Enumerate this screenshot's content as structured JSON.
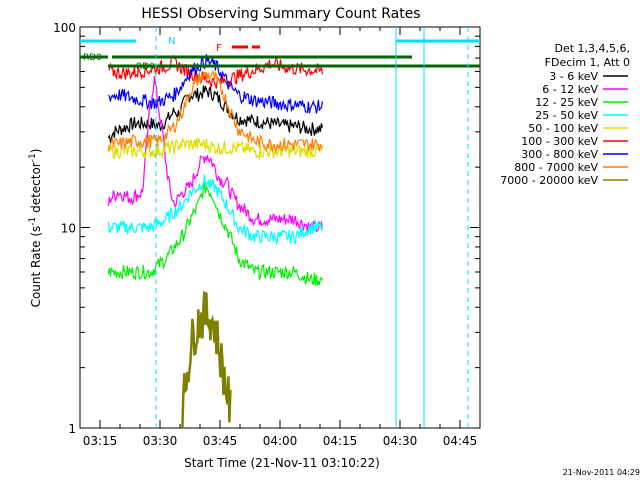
{
  "chart_data": {
    "type": "line",
    "title": "HESSI Observing Summary Count Rates",
    "xlabel": "Start Time (21-Nov-11 03:10:22)",
    "ylabel_main": "Count Rate (s",
    "ylabel_sup1": "-1",
    "ylabel_mid": " detector",
    "ylabel_sup2": "-1",
    "ylabel_end": ")",
    "y_scale": "log",
    "ylim": [
      1,
      100
    ],
    "xlim": [
      "03:10",
      "04:50"
    ],
    "x_ticks": [
      "03:15",
      "03:30",
      "03:45",
      "04:00",
      "04:15",
      "04:30",
      "04:45"
    ],
    "y_ticks": [
      "1",
      "10",
      "100"
    ],
    "footer": "21-Nov-2011 04:29",
    "legend_header": [
      "Det 1,3,4,5,6,",
      "FDecim 1, Att 0"
    ],
    "legend_placement": "right",
    "series": [
      {
        "name": "3 - 6 keV",
        "color": "#000000",
        "values": [
          [
            3.5,
            28
          ],
          [
            5,
            30
          ],
          [
            10,
            33
          ],
          [
            14,
            33
          ],
          [
            16,
            32
          ],
          [
            18,
            34
          ],
          [
            20,
            38
          ],
          [
            21,
            37
          ],
          [
            22,
            40
          ],
          [
            23,
            44
          ],
          [
            24,
            46
          ],
          [
            26,
            46
          ],
          [
            28,
            48
          ],
          [
            30,
            46
          ],
          [
            32,
            42
          ],
          [
            34,
            38
          ],
          [
            36,
            35
          ],
          [
            40,
            34
          ],
          [
            44,
            33
          ],
          [
            48,
            32
          ],
          [
            50,
            32
          ],
          [
            54,
            31
          ],
          [
            57,
            31
          ]
        ]
      },
      {
        "name": "6 - 12 keV",
        "color": "#ff00ff",
        "values": [
          [
            3.5,
            13
          ],
          [
            4,
            14
          ],
          [
            6,
            15
          ],
          [
            9,
            14
          ],
          [
            12,
            15
          ],
          [
            13,
            25
          ],
          [
            14,
            42
          ],
          [
            15,
            55
          ],
          [
            16,
            40
          ],
          [
            17,
            30
          ],
          [
            18,
            20
          ],
          [
            19,
            15
          ],
          [
            20,
            13
          ],
          [
            21,
            14
          ],
          [
            22,
            15
          ],
          [
            24,
            16
          ],
          [
            25,
            18
          ],
          [
            26,
            20
          ],
          [
            27,
            22
          ],
          [
            28,
            23
          ],
          [
            29,
            22
          ],
          [
            30,
            20
          ],
          [
            31,
            18
          ],
          [
            32,
            17
          ],
          [
            33,
            17
          ],
          [
            34,
            15
          ],
          [
            36,
            13
          ],
          [
            38,
            12
          ],
          [
            40,
            11
          ],
          [
            44,
            11
          ],
          [
            48,
            11
          ],
          [
            50,
            11
          ],
          [
            54,
            10
          ],
          [
            57,
            10
          ]
        ]
      },
      {
        "name": "12 - 25 keV",
        "color": "#00ee00",
        "values": [
          [
            3.5,
            6
          ],
          [
            6,
            6
          ],
          [
            10,
            6
          ],
          [
            14,
            6
          ],
          [
            16,
            6.5
          ],
          [
            18,
            7
          ],
          [
            20,
            8
          ],
          [
            22,
            9
          ],
          [
            24,
            11
          ],
          [
            26,
            13
          ],
          [
            27,
            15
          ],
          [
            28,
            16
          ],
          [
            29,
            15
          ],
          [
            30,
            14
          ],
          [
            31,
            12
          ],
          [
            32,
            11
          ],
          [
            33,
            10
          ],
          [
            34,
            9
          ],
          [
            35,
            8
          ],
          [
            36,
            7
          ],
          [
            40,
            6
          ],
          [
            44,
            6
          ],
          [
            48,
            6
          ],
          [
            50,
            6
          ],
          [
            54,
            5.5
          ],
          [
            57,
            5.5
          ]
        ]
      },
      {
        "name": "25 - 50 keV",
        "color": "#00ffff",
        "values": [
          [
            3.5,
            10
          ],
          [
            6,
            10
          ],
          [
            10,
            10
          ],
          [
            14,
            10
          ],
          [
            16,
            10.5
          ],
          [
            18,
            11
          ],
          [
            20,
            12
          ],
          [
            22,
            13
          ],
          [
            24,
            15
          ],
          [
            26,
            16
          ],
          [
            27,
            17
          ],
          [
            28,
            17
          ],
          [
            29,
            16
          ],
          [
            30,
            16
          ],
          [
            31,
            15
          ],
          [
            32,
            14
          ],
          [
            33,
            13
          ],
          [
            34,
            12
          ],
          [
            35,
            11
          ],
          [
            36,
            10
          ],
          [
            40,
            9
          ],
          [
            44,
            9
          ],
          [
            48,
            9
          ],
          [
            50,
            9
          ],
          [
            54,
            10
          ],
          [
            57,
            10
          ]
        ]
      },
      {
        "name": "50 - 100 keV",
        "color": "#dddd00",
        "values": [
          [
            3.5,
            24
          ],
          [
            6,
            24
          ],
          [
            10,
            24
          ],
          [
            14,
            24
          ],
          [
            16,
            24
          ],
          [
            18,
            25
          ],
          [
            20,
            25
          ],
          [
            21,
            26
          ],
          [
            22,
            26
          ],
          [
            23,
            26
          ],
          [
            24,
            26
          ],
          [
            26,
            26
          ],
          [
            28,
            26
          ],
          [
            30,
            25
          ],
          [
            32,
            25
          ],
          [
            34,
            25
          ],
          [
            36,
            25
          ],
          [
            40,
            24
          ],
          [
            44,
            24
          ],
          [
            48,
            24
          ],
          [
            50,
            24
          ],
          [
            54,
            24
          ],
          [
            57,
            24
          ]
        ]
      },
      {
        "name": "100 - 300 keV",
        "color": "#ff0000",
        "values": [
          [
            3.5,
            61
          ],
          [
            6,
            59
          ],
          [
            9,
            59
          ],
          [
            11,
            60
          ],
          [
            13,
            61
          ],
          [
            15,
            62
          ],
          [
            17,
            63
          ],
          [
            19,
            65
          ],
          [
            20,
            67
          ],
          [
            21,
            64
          ],
          [
            22,
            62
          ],
          [
            23,
            60
          ],
          [
            25,
            58
          ],
          [
            27,
            56
          ],
          [
            28,
            55
          ],
          [
            29,
            54
          ],
          [
            31,
            53
          ],
          [
            33,
            54
          ],
          [
            35,
            56
          ],
          [
            37,
            58
          ],
          [
            39,
            60
          ],
          [
            41,
            62
          ],
          [
            43,
            64
          ],
          [
            44,
            66
          ],
          [
            46,
            64
          ],
          [
            48,
            63
          ],
          [
            50,
            62
          ],
          [
            54,
            61
          ],
          [
            57,
            60
          ]
        ]
      },
      {
        "name": "300 - 800 keV",
        "color": "#0000ff",
        "values": [
          [
            3.5,
            45
          ],
          [
            6,
            46
          ],
          [
            10,
            44
          ],
          [
            14,
            42
          ],
          [
            16,
            42
          ],
          [
            18,
            44
          ],
          [
            20,
            46
          ],
          [
            22,
            52
          ],
          [
            24,
            60
          ],
          [
            26,
            64
          ],
          [
            28,
            68
          ],
          [
            30,
            65
          ],
          [
            32,
            58
          ],
          [
            34,
            50
          ],
          [
            36,
            46
          ],
          [
            40,
            43
          ],
          [
            44,
            42
          ],
          [
            48,
            41
          ],
          [
            50,
            41
          ],
          [
            54,
            40
          ],
          [
            57,
            40
          ]
        ]
      },
      {
        "name": "800 - 7000 keV",
        "color": "#ff8000",
        "values": [
          [
            3.5,
            26
          ],
          [
            6,
            26
          ],
          [
            10,
            27
          ],
          [
            14,
            27
          ],
          [
            16,
            27
          ],
          [
            18,
            29
          ],
          [
            20,
            32
          ],
          [
            22,
            38
          ],
          [
            24,
            48
          ],
          [
            26,
            55
          ],
          [
            28,
            58
          ],
          [
            30,
            56
          ],
          [
            32,
            48
          ],
          [
            34,
            38
          ],
          [
            36,
            31
          ],
          [
            40,
            27
          ],
          [
            44,
            26
          ],
          [
            48,
            26
          ],
          [
            50,
            26
          ],
          [
            54,
            26
          ],
          [
            57,
            26
          ]
        ]
      },
      {
        "name": "7000 - 20000 keV",
        "color": "#808000",
        "values": [
          [
            22,
            1.2
          ],
          [
            23,
            1.8
          ],
          [
            24,
            2.5
          ],
          [
            25,
            3.0
          ],
          [
            26,
            3.4
          ],
          [
            27,
            3.6
          ],
          [
            28,
            3.7
          ],
          [
            29,
            3.6
          ],
          [
            30,
            3.2
          ],
          [
            31,
            2.6
          ],
          [
            32,
            2.0
          ],
          [
            33,
            1.6
          ],
          [
            34,
            1.2
          ]
        ]
      }
    ],
    "overlays": [
      {
        "label": "N",
        "color": "#00e0ff"
      },
      {
        "label": "F",
        "color": "#ff0000"
      },
      {
        "label": "RD0",
        "color": "#006400"
      },
      {
        "label": "RD0",
        "color": "#006400"
      }
    ]
  }
}
